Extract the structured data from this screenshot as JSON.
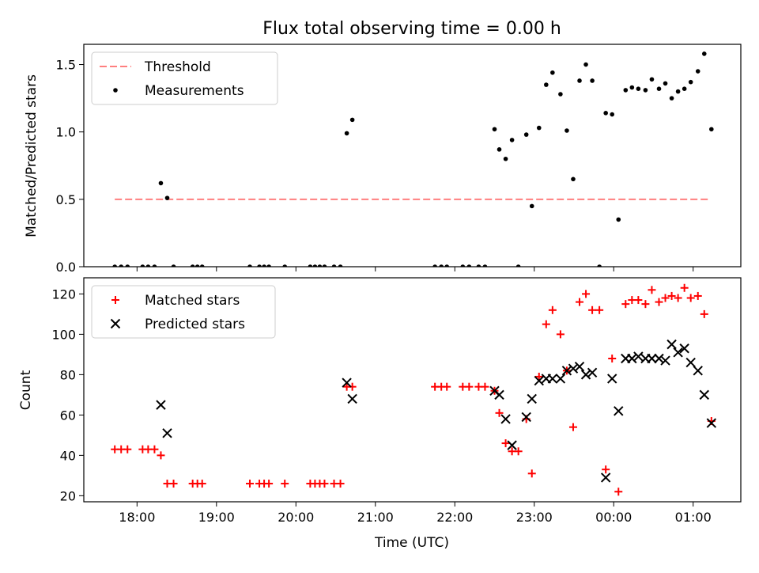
{
  "chart_data": [
    {
      "type": "scatter",
      "title": "Flux total observing time = 0.00 h",
      "ylabel": "Matched/Predicted stars",
      "xlabel": "",
      "x_unit": "hours (UTC, continuing past midnight)",
      "xlim": [
        17.33,
        25.6
      ],
      "ylim": [
        0,
        1.65
      ],
      "yticks": [
        0.0,
        0.5,
        1.0,
        1.5
      ],
      "ytick_labels": [
        "0.0",
        "0.5",
        "1.0",
        "1.5"
      ],
      "legend": {
        "position": "top-left",
        "entries": [
          "Threshold",
          "Measurements"
        ]
      },
      "threshold": {
        "name": "Threshold",
        "y": 0.5,
        "x_start": 17.72,
        "x_end": 25.22,
        "color": "#ff7f7f",
        "style": "dashed"
      },
      "series": [
        {
          "name": "Measurements",
          "marker": "dot",
          "color": "#000000",
          "points": [
            [
              17.72,
              0
            ],
            [
              17.8,
              0
            ],
            [
              17.88,
              0
            ],
            [
              18.07,
              0
            ],
            [
              18.14,
              0
            ],
            [
              18.22,
              0
            ],
            [
              18.3,
              0.62
            ],
            [
              18.38,
              0.51
            ],
            [
              18.46,
              0
            ],
            [
              18.7,
              0
            ],
            [
              18.76,
              0
            ],
            [
              18.82,
              0
            ],
            [
              19.42,
              0
            ],
            [
              19.54,
              0
            ],
            [
              19.6,
              0
            ],
            [
              19.66,
              0
            ],
            [
              19.86,
              0
            ],
            [
              20.18,
              0
            ],
            [
              20.24,
              0
            ],
            [
              20.3,
              0
            ],
            [
              20.36,
              0
            ],
            [
              20.48,
              0
            ],
            [
              20.56,
              0
            ],
            [
              20.64,
              0.99
            ],
            [
              20.71,
              1.09
            ],
            [
              21.75,
              0
            ],
            [
              21.83,
              0
            ],
            [
              21.9,
              0
            ],
            [
              22.1,
              0
            ],
            [
              22.18,
              0
            ],
            [
              22.3,
              0
            ],
            [
              22.38,
              0
            ],
            [
              22.5,
              1.02
            ],
            [
              22.56,
              0.87
            ],
            [
              22.64,
              0.8
            ],
            [
              22.72,
              0.94
            ],
            [
              22.8,
              0
            ],
            [
              22.9,
              0.98
            ],
            [
              22.97,
              0.45
            ],
            [
              23.06,
              1.03
            ],
            [
              23.15,
              1.35
            ],
            [
              23.23,
              1.44
            ],
            [
              23.33,
              1.28
            ],
            [
              23.41,
              1.01
            ],
            [
              23.49,
              0.65
            ],
            [
              23.57,
              1.38
            ],
            [
              23.65,
              1.5
            ],
            [
              23.73,
              1.38
            ],
            [
              23.82,
              0
            ],
            [
              23.9,
              1.14
            ],
            [
              23.98,
              1.13
            ],
            [
              24.06,
              0.35
            ],
            [
              24.15,
              1.31
            ],
            [
              24.23,
              1.33
            ],
            [
              24.31,
              1.32
            ],
            [
              24.4,
              1.31
            ],
            [
              24.48,
              1.39
            ],
            [
              24.57,
              1.32
            ],
            [
              24.65,
              1.36
            ],
            [
              24.73,
              1.25
            ],
            [
              24.81,
              1.3
            ],
            [
              24.89,
              1.32
            ],
            [
              24.97,
              1.37
            ],
            [
              25.06,
              1.45
            ],
            [
              25.14,
              1.58
            ],
            [
              25.23,
              1.02
            ]
          ]
        }
      ]
    },
    {
      "type": "scatter",
      "title": "",
      "ylabel": "Count",
      "xlabel": "Time (UTC)",
      "x_unit": "hours (UTC, continuing past midnight)",
      "xlim": [
        17.33,
        25.6
      ],
      "ylim": [
        17,
        128
      ],
      "yticks": [
        20,
        40,
        60,
        80,
        100,
        120
      ],
      "ytick_labels": [
        "20",
        "40",
        "60",
        "80",
        "100",
        "120"
      ],
      "xticks": [
        18,
        19,
        20,
        21,
        22,
        23,
        24,
        25
      ],
      "xtick_labels": [
        "18:00",
        "19:00",
        "20:00",
        "21:00",
        "22:00",
        "23:00",
        "00:00",
        "01:00"
      ],
      "legend": {
        "position": "top-left",
        "entries": [
          "Matched stars",
          "Predicted stars"
        ]
      },
      "series": [
        {
          "name": "Matched stars",
          "marker": "plus",
          "color": "#ff0000",
          "points": [
            [
              17.72,
              43
            ],
            [
              17.8,
              43
            ],
            [
              17.88,
              43
            ],
            [
              18.07,
              43
            ],
            [
              18.14,
              43
            ],
            [
              18.22,
              43
            ],
            [
              18.3,
              40
            ],
            [
              18.38,
              26
            ],
            [
              18.46,
              26
            ],
            [
              18.7,
              26
            ],
            [
              18.76,
              26
            ],
            [
              18.82,
              26
            ],
            [
              19.42,
              26
            ],
            [
              19.54,
              26
            ],
            [
              19.6,
              26
            ],
            [
              19.66,
              26
            ],
            [
              19.86,
              26
            ],
            [
              20.18,
              26
            ],
            [
              20.24,
              26
            ],
            [
              20.3,
              26
            ],
            [
              20.36,
              26
            ],
            [
              20.48,
              26
            ],
            [
              20.56,
              26
            ],
            [
              20.64,
              74
            ],
            [
              20.71,
              74
            ],
            [
              21.75,
              74
            ],
            [
              21.83,
              74
            ],
            [
              21.9,
              74
            ],
            [
              22.1,
              74
            ],
            [
              22.18,
              74
            ],
            [
              22.3,
              74
            ],
            [
              22.38,
              74
            ],
            [
              22.5,
              72
            ],
            [
              22.56,
              61
            ],
            [
              22.64,
              46
            ],
            [
              22.72,
              42
            ],
            [
              22.8,
              42
            ],
            [
              22.9,
              58
            ],
            [
              22.97,
              31
            ],
            [
              23.06,
              79
            ],
            [
              23.15,
              105
            ],
            [
              23.23,
              112
            ],
            [
              23.33,
              100
            ],
            [
              23.41,
              82
            ],
            [
              23.49,
              54
            ],
            [
              23.57,
              116
            ],
            [
              23.65,
              120
            ],
            [
              23.73,
              112
            ],
            [
              23.82,
              112
            ],
            [
              23.9,
              33
            ],
            [
              23.98,
              88
            ],
            [
              24.06,
              22
            ],
            [
              24.15,
              115
            ],
            [
              24.23,
              117
            ],
            [
              24.31,
              117
            ],
            [
              24.4,
              115
            ],
            [
              24.48,
              122
            ],
            [
              24.57,
              116
            ],
            [
              24.65,
              118
            ],
            [
              24.73,
              119
            ],
            [
              24.81,
              118
            ],
            [
              24.89,
              123
            ],
            [
              24.97,
              118
            ],
            [
              25.06,
              119
            ],
            [
              25.14,
              110
            ],
            [
              25.23,
              57
            ]
          ]
        },
        {
          "name": "Predicted stars",
          "marker": "x",
          "color": "#000000",
          "points": [
            [
              18.3,
              65
            ],
            [
              18.38,
              51
            ],
            [
              20.64,
              76
            ],
            [
              20.71,
              68
            ],
            [
              22.5,
              72
            ],
            [
              22.56,
              70
            ],
            [
              22.64,
              58
            ],
            [
              22.72,
              45
            ],
            [
              22.9,
              59
            ],
            [
              22.97,
              68
            ],
            [
              23.06,
              77
            ],
            [
              23.15,
              78
            ],
            [
              23.23,
              78
            ],
            [
              23.33,
              78
            ],
            [
              23.41,
              82
            ],
            [
              23.49,
              83
            ],
            [
              23.57,
              84
            ],
            [
              23.65,
              80
            ],
            [
              23.73,
              81
            ],
            [
              23.9,
              29
            ],
            [
              23.98,
              78
            ],
            [
              24.06,
              62
            ],
            [
              24.15,
              88
            ],
            [
              24.23,
              88
            ],
            [
              24.31,
              89
            ],
            [
              24.4,
              88
            ],
            [
              24.48,
              88
            ],
            [
              24.57,
              88
            ],
            [
              24.65,
              87
            ],
            [
              24.73,
              95
            ],
            [
              24.81,
              91
            ],
            [
              24.89,
              93
            ],
            [
              24.97,
              86
            ],
            [
              25.06,
              82
            ],
            [
              25.14,
              70
            ],
            [
              25.23,
              56
            ]
          ]
        }
      ]
    }
  ]
}
